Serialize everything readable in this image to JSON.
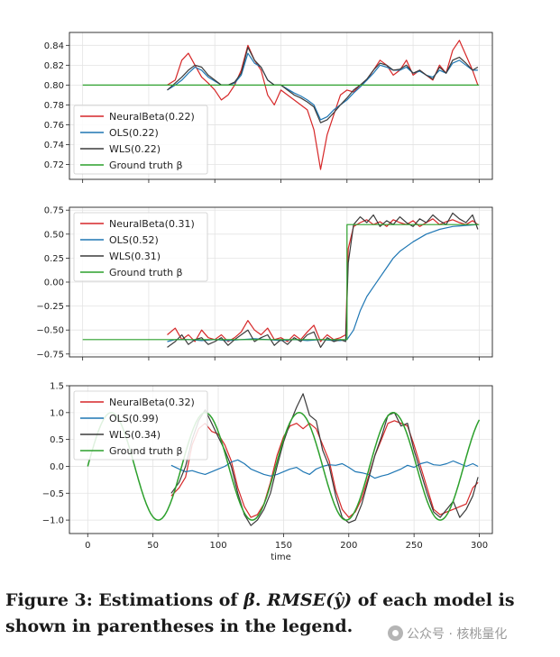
{
  "figure": {
    "caption_label": "Figure 3:",
    "caption_pre": " Estimations of ",
    "caption_beta": "β",
    "caption_mid": ". ",
    "caption_metric": "RMSE(ŷ)",
    "caption_post": " of each model is shown in parentheses in the legend.",
    "watermark": "公众号 · 核桃量化",
    "colors": {
      "neural": "#d62728",
      "ols": "#1f77b4",
      "wls": "#3b3b3b",
      "truth": "#2ca02c"
    }
  },
  "chart_data": [
    {
      "type": "line",
      "title": "",
      "xlabel": "",
      "ylabel": "",
      "xlim": [
        -10,
        310
      ],
      "ylim": [
        0.705,
        0.853
      ],
      "yticks": [
        0.72,
        0.74,
        0.76,
        0.78,
        0.8,
        0.82,
        0.84
      ],
      "ytick_labels": [
        "0.72",
        "0.74",
        "0.76",
        "0.78",
        "0.80",
        "0.82",
        "0.84"
      ],
      "xticks": [
        0,
        50,
        100,
        150,
        200,
        250,
        300
      ],
      "grid": true,
      "legend_position": "lower-left",
      "legend": [
        "NeuralBeta(0.22)",
        "OLS(0.22)",
        "WLS(0.22)",
        "Ground truth β"
      ],
      "series": [
        {
          "name": "NeuralBeta(0.22)",
          "color": "#d62728",
          "x": [
            64,
            70,
            75,
            80,
            85,
            90,
            95,
            100,
            105,
            110,
            115,
            120,
            125,
            130,
            135,
            140,
            145,
            150,
            155,
            160,
            165,
            170,
            175,
            180,
            185,
            190,
            195,
            200,
            205,
            210,
            215,
            220,
            225,
            230,
            235,
            240,
            245,
            250,
            255,
            260,
            265,
            270,
            275,
            280,
            285,
            290,
            295,
            299
          ],
          "y": [
            0.8,
            0.805,
            0.825,
            0.832,
            0.82,
            0.808,
            0.802,
            0.795,
            0.785,
            0.79,
            0.8,
            0.815,
            0.84,
            0.825,
            0.815,
            0.79,
            0.78,
            0.795,
            0.79,
            0.785,
            0.78,
            0.775,
            0.755,
            0.715,
            0.75,
            0.77,
            0.79,
            0.795,
            0.793,
            0.8,
            0.805,
            0.815,
            0.825,
            0.82,
            0.81,
            0.815,
            0.825,
            0.81,
            0.815,
            0.81,
            0.805,
            0.82,
            0.812,
            0.835,
            0.845,
            0.83,
            0.815,
            0.8
          ]
        },
        {
          "name": "OLS(0.22)",
          "color": "#1f77b4",
          "x": [
            64,
            70,
            75,
            80,
            85,
            90,
            95,
            100,
            105,
            110,
            115,
            120,
            125,
            130,
            135,
            140,
            145,
            150,
            155,
            160,
            165,
            170,
            175,
            180,
            185,
            190,
            195,
            200,
            205,
            210,
            215,
            220,
            225,
            230,
            235,
            240,
            245,
            250,
            255,
            260,
            265,
            270,
            275,
            280,
            285,
            290,
            295,
            299
          ],
          "y": [
            0.795,
            0.8,
            0.805,
            0.812,
            0.818,
            0.815,
            0.808,
            0.804,
            0.8,
            0.8,
            0.802,
            0.81,
            0.832,
            0.822,
            0.818,
            0.805,
            0.8,
            0.8,
            0.796,
            0.792,
            0.789,
            0.785,
            0.78,
            0.765,
            0.768,
            0.775,
            0.78,
            0.785,
            0.792,
            0.798,
            0.805,
            0.812,
            0.82,
            0.818,
            0.815,
            0.815,
            0.818,
            0.812,
            0.814,
            0.81,
            0.808,
            0.815,
            0.812,
            0.822,
            0.825,
            0.82,
            0.815,
            0.815
          ]
        },
        {
          "name": "WLS(0.22)",
          "color": "#3b3b3b",
          "x": [
            64,
            70,
            75,
            80,
            85,
            90,
            95,
            100,
            105,
            110,
            115,
            120,
            125,
            130,
            135,
            140,
            145,
            150,
            155,
            160,
            165,
            170,
            175,
            180,
            185,
            190,
            195,
            200,
            205,
            210,
            215,
            220,
            225,
            230,
            235,
            240,
            245,
            250,
            255,
            260,
            265,
            270,
            275,
            280,
            285,
            290,
            295,
            299
          ],
          "y": [
            0.795,
            0.802,
            0.808,
            0.815,
            0.82,
            0.818,
            0.81,
            0.805,
            0.8,
            0.8,
            0.803,
            0.812,
            0.838,
            0.825,
            0.818,
            0.805,
            0.8,
            0.8,
            0.795,
            0.79,
            0.787,
            0.783,
            0.778,
            0.762,
            0.765,
            0.772,
            0.78,
            0.787,
            0.795,
            0.8,
            0.806,
            0.815,
            0.822,
            0.82,
            0.815,
            0.816,
            0.82,
            0.812,
            0.815,
            0.81,
            0.806,
            0.818,
            0.812,
            0.825,
            0.828,
            0.822,
            0.815,
            0.818
          ]
        },
        {
          "name": "Ground truth β",
          "color": "#2ca02c",
          "x": [
            0,
            300
          ],
          "y": [
            0.8,
            0.8
          ]
        }
      ]
    },
    {
      "type": "line",
      "title": "",
      "xlabel": "",
      "ylabel": "",
      "xlim": [
        -10,
        310
      ],
      "ylim": [
        -0.78,
        0.78
      ],
      "yticks": [
        -0.75,
        -0.5,
        -0.25,
        0.0,
        0.25,
        0.5,
        0.75
      ],
      "ytick_labels": [
        "−0.75",
        "−0.50",
        "−0.25",
        "0.00",
        "0.25",
        "0.50",
        "0.75"
      ],
      "xticks": [
        0,
        50,
        100,
        150,
        200,
        250,
        300
      ],
      "grid": true,
      "legend_position": "upper-left",
      "legend": [
        "NeuralBeta(0.31)",
        "OLS(0.52)",
        "WLS(0.31)",
        "Ground truth β"
      ],
      "series": [
        {
          "name": "NeuralBeta(0.31)",
          "color": "#d62728",
          "x": [
            64,
            70,
            75,
            80,
            85,
            90,
            95,
            100,
            105,
            110,
            115,
            120,
            125,
            130,
            135,
            140,
            145,
            150,
            155,
            160,
            165,
            170,
            175,
            180,
            185,
            190,
            195,
            199,
            201,
            205,
            210,
            215,
            220,
            225,
            230,
            235,
            240,
            245,
            250,
            255,
            260,
            265,
            270,
            275,
            280,
            285,
            290,
            295,
            299
          ],
          "y": [
            -0.55,
            -0.48,
            -0.6,
            -0.55,
            -0.62,
            -0.5,
            -0.58,
            -0.6,
            -0.55,
            -0.62,
            -0.58,
            -0.52,
            -0.4,
            -0.5,
            -0.55,
            -0.48,
            -0.6,
            -0.58,
            -0.62,
            -0.55,
            -0.6,
            -0.52,
            -0.45,
            -0.62,
            -0.55,
            -0.6,
            -0.58,
            -0.55,
            0.35,
            0.58,
            0.62,
            0.65,
            0.6,
            0.63,
            0.58,
            0.65,
            0.62,
            0.6,
            0.64,
            0.58,
            0.62,
            0.66,
            0.6,
            0.63,
            0.65,
            0.62,
            0.6,
            0.64,
            0.6
          ]
        },
        {
          "name": "OLS(0.52)",
          "color": "#1f77b4",
          "x": [
            64,
            70,
            80,
            90,
            100,
            110,
            120,
            130,
            140,
            150,
            160,
            170,
            180,
            190,
            195,
            200,
            205,
            210,
            215,
            220,
            225,
            230,
            235,
            240,
            250,
            260,
            270,
            280,
            290,
            299
          ],
          "y": [
            -0.62,
            -0.6,
            -0.6,
            -0.61,
            -0.6,
            -0.61,
            -0.6,
            -0.59,
            -0.6,
            -0.61,
            -0.6,
            -0.61,
            -0.6,
            -0.61,
            -0.61,
            -0.6,
            -0.5,
            -0.3,
            -0.15,
            -0.05,
            0.05,
            0.15,
            0.25,
            0.32,
            0.42,
            0.5,
            0.55,
            0.58,
            0.59,
            0.6
          ]
        },
        {
          "name": "WLS(0.31)",
          "color": "#3b3b3b",
          "x": [
            64,
            70,
            75,
            80,
            85,
            90,
            95,
            100,
            105,
            110,
            115,
            120,
            125,
            130,
            135,
            140,
            145,
            150,
            155,
            160,
            165,
            170,
            175,
            180,
            185,
            190,
            195,
            199,
            201,
            205,
            210,
            215,
            220,
            225,
            230,
            235,
            240,
            245,
            250,
            255,
            260,
            265,
            270,
            275,
            280,
            285,
            290,
            295,
            299
          ],
          "y": [
            -0.68,
            -0.62,
            -0.55,
            -0.65,
            -0.6,
            -0.58,
            -0.65,
            -0.62,
            -0.58,
            -0.66,
            -0.6,
            -0.55,
            -0.5,
            -0.62,
            -0.58,
            -0.55,
            -0.66,
            -0.6,
            -0.65,
            -0.58,
            -0.62,
            -0.55,
            -0.52,
            -0.68,
            -0.58,
            -0.62,
            -0.6,
            -0.62,
            0.2,
            0.6,
            0.68,
            0.62,
            0.7,
            0.58,
            0.64,
            0.6,
            0.68,
            0.62,
            0.58,
            0.66,
            0.62,
            0.7,
            0.64,
            0.6,
            0.72,
            0.66,
            0.62,
            0.7,
            0.55
          ]
        },
        {
          "name": "Ground truth β",
          "color": "#2ca02c",
          "x": [
            0,
            200,
            200,
            300
          ],
          "y": [
            -0.6,
            -0.6,
            0.6,
            0.6
          ]
        }
      ]
    },
    {
      "type": "line",
      "title": "",
      "xlabel": "time",
      "ylabel": "",
      "xlim": [
        -14,
        310
      ],
      "ylim": [
        -1.25,
        1.5
      ],
      "yticks": [
        -1.0,
        -0.5,
        0.0,
        0.5,
        1.0,
        1.5
      ],
      "ytick_labels": [
        "−1.0",
        "−0.5",
        "0.0",
        "0.5",
        "1.0",
        "1.5"
      ],
      "xticks": [
        0,
        50,
        100,
        150,
        200,
        250,
        300
      ],
      "xtick_labels": [
        "0",
        "50",
        "100",
        "150",
        "200",
        "250",
        "300"
      ],
      "grid": true,
      "legend_position": "upper-left",
      "legend": [
        "NeuralBeta(0.32)",
        "OLS(0.99)",
        "WLS(0.34)",
        "Ground truth β"
      ],
      "series": [
        {
          "name": "NeuralBeta(0.32)",
          "color": "#d62728",
          "x": [
            64,
            70,
            75,
            80,
            85,
            90,
            95,
            100,
            105,
            110,
            115,
            120,
            125,
            130,
            135,
            140,
            145,
            150,
            155,
            160,
            165,
            170,
            175,
            180,
            185,
            190,
            195,
            200,
            205,
            210,
            215,
            220,
            225,
            230,
            235,
            240,
            245,
            250,
            255,
            260,
            265,
            270,
            275,
            280,
            285,
            290,
            295,
            299
          ],
          "y": [
            -0.55,
            -0.4,
            -0.2,
            0.4,
            0.7,
            0.8,
            0.65,
            0.6,
            0.4,
            0.1,
            -0.4,
            -0.75,
            -0.95,
            -0.9,
            -0.7,
            -0.3,
            0.2,
            0.55,
            0.75,
            0.8,
            0.7,
            0.8,
            0.7,
            0.4,
            0.1,
            -0.45,
            -0.8,
            -0.95,
            -0.85,
            -0.6,
            -0.2,
            0.2,
            0.5,
            0.8,
            0.85,
            0.8,
            0.75,
            0.4,
            0.0,
            -0.4,
            -0.8,
            -0.9,
            -0.85,
            -0.8,
            -0.75,
            -0.7,
            -0.4,
            -0.3
          ]
        },
        {
          "name": "OLS(0.99)",
          "color": "#1f77b4",
          "x": [
            64,
            70,
            75,
            80,
            85,
            90,
            95,
            100,
            105,
            110,
            115,
            120,
            125,
            130,
            135,
            140,
            145,
            150,
            155,
            160,
            165,
            170,
            175,
            180,
            185,
            190,
            195,
            200,
            205,
            210,
            215,
            220,
            225,
            230,
            235,
            240,
            245,
            250,
            255,
            260,
            265,
            270,
            275,
            280,
            285,
            290,
            295,
            299
          ],
          "y": [
            0.02,
            -0.05,
            -0.1,
            -0.08,
            -0.12,
            -0.15,
            -0.1,
            -0.05,
            0.0,
            0.08,
            0.12,
            0.05,
            -0.05,
            -0.1,
            -0.15,
            -0.18,
            -0.15,
            -0.1,
            -0.05,
            -0.02,
            -0.1,
            -0.15,
            -0.05,
            0.0,
            0.03,
            0.02,
            0.05,
            -0.02,
            -0.1,
            -0.12,
            -0.15,
            -0.22,
            -0.18,
            -0.15,
            -0.1,
            -0.05,
            0.02,
            -0.02,
            0.05,
            0.08,
            0.03,
            0.02,
            0.05,
            0.1,
            0.05,
            0.0,
            0.05,
            0.0
          ]
        },
        {
          "name": "WLS(0.34)",
          "color": "#3b3b3b",
          "x": [
            64,
            70,
            75,
            80,
            85,
            90,
            95,
            100,
            105,
            110,
            115,
            120,
            125,
            130,
            135,
            140,
            145,
            150,
            155,
            160,
            165,
            170,
            175,
            180,
            185,
            190,
            195,
            200,
            205,
            210,
            215,
            220,
            225,
            230,
            235,
            240,
            245,
            250,
            255,
            260,
            265,
            270,
            275,
            280,
            285,
            290,
            295,
            299
          ],
          "y": [
            -0.5,
            -0.3,
            0.0,
            0.5,
            0.85,
            1.05,
            0.8,
            0.55,
            0.3,
            0.0,
            -0.5,
            -0.9,
            -1.1,
            -1.0,
            -0.8,
            -0.5,
            0.0,
            0.45,
            0.8,
            1.1,
            1.35,
            0.95,
            0.85,
            0.3,
            0.0,
            -0.55,
            -0.95,
            -1.05,
            -1.0,
            -0.7,
            -0.25,
            0.2,
            0.55,
            0.95,
            1.0,
            0.75,
            0.8,
            0.3,
            -0.1,
            -0.5,
            -0.85,
            -0.95,
            -0.8,
            -0.65,
            -0.95,
            -0.8,
            -0.55,
            -0.2
          ]
        },
        {
          "name": "Ground truth β",
          "color": "#2ca02c",
          "func": "sin",
          "amplitude": 1.0,
          "period": 72,
          "x_start": 0,
          "x_end": 300
        }
      ]
    }
  ]
}
